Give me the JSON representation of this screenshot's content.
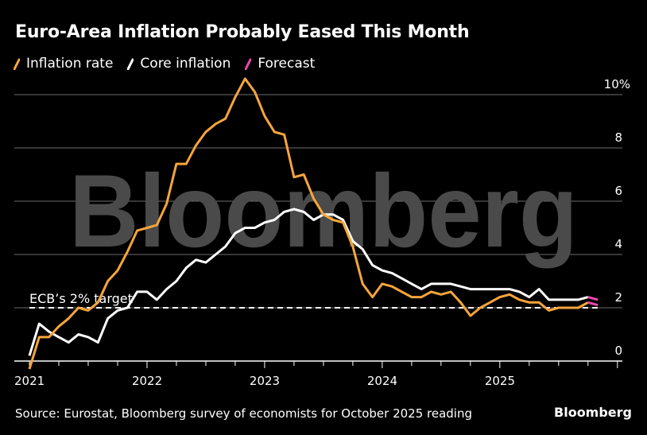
{
  "header": {
    "title": "Euro-Area Inflation Probably Eased This Month"
  },
  "legend": [
    {
      "label": "Inflation rate",
      "color": "#f7a53b"
    },
    {
      "label": "Core inflation",
      "color": "#ffffff"
    },
    {
      "label": "Forecast",
      "color": "#ec46b0"
    }
  ],
  "footer": {
    "source": "Source: Eurostat, Bloomberg survey of economists for October 2025 reading",
    "brand": "Bloomberg"
  },
  "watermark": "Bloomberg",
  "chart_data": {
    "type": "line",
    "title": "Euro-Area Inflation Probably Eased This Month",
    "xlabel": "",
    "ylabel": "",
    "ylim": [
      0,
      10
    ],
    "y_ticks": [
      "0",
      "2",
      "4",
      "6",
      "8",
      "10%"
    ],
    "y_tick_values": [
      0,
      2,
      4,
      6,
      8,
      10
    ],
    "x_tick_labels": [
      "2021",
      "2022",
      "2023",
      "2024",
      "2025"
    ],
    "x_start": "Dec 2020",
    "x_unit": "month",
    "grid": true,
    "reference_line": {
      "label": "ECB’s 2% target",
      "value": 2
    },
    "series": [
      {
        "name": "Inflation rate",
        "color": "#f7a53b",
        "values": [
          -0.3,
          0.9,
          0.9,
          1.3,
          1.6,
          2.0,
          1.9,
          2.2,
          3.0,
          3.4,
          4.1,
          4.9,
          5.0,
          5.1,
          5.9,
          7.4,
          7.4,
          8.1,
          8.6,
          8.9,
          9.1,
          9.9,
          10.6,
          10.1,
          9.2,
          8.6,
          8.5,
          6.9,
          7.0,
          6.1,
          5.5,
          5.3,
          5.2,
          4.3,
          2.9,
          2.4,
          2.9,
          2.8,
          2.6,
          2.4,
          2.4,
          2.6,
          2.5,
          2.6,
          2.2,
          1.7,
          2.0,
          2.2,
          2.4,
          2.5,
          2.3,
          2.2,
          2.2,
          1.9,
          2.0,
          2.0,
          2.0,
          2.2
        ],
        "forecast": 2.1
      },
      {
        "name": "Core inflation",
        "color": "#ffffff",
        "values": [
          0.2,
          1.4,
          1.1,
          0.9,
          0.7,
          1.0,
          0.9,
          0.7,
          1.6,
          1.9,
          2.0,
          2.6,
          2.6,
          2.3,
          2.7,
          3.0,
          3.5,
          3.8,
          3.7,
          4.0,
          4.3,
          4.8,
          5.0,
          5.0,
          5.2,
          5.3,
          5.6,
          5.7,
          5.6,
          5.3,
          5.5,
          5.5,
          5.3,
          4.5,
          4.2,
          3.6,
          3.4,
          3.3,
          3.1,
          2.9,
          2.7,
          2.9,
          2.9,
          2.9,
          2.8,
          2.7,
          2.7,
          2.7,
          2.7,
          2.7,
          2.6,
          2.4,
          2.7,
          2.3,
          2.3,
          2.3,
          2.3,
          2.4
        ],
        "forecast": 2.3
      }
    ]
  }
}
